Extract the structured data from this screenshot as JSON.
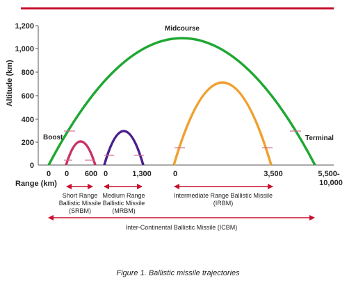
{
  "figure": {
    "caption": "Figure 1. Ballistic missile trajectories",
    "colors": {
      "top_rule": "#c8102e",
      "arrow": "#c8102e",
      "srbm": "#c8336a",
      "mrbm": "#4b1f8e",
      "irbm": "#f0a030",
      "icbm": "#1ea832",
      "marker": "#d07090",
      "axis": "#555555"
    },
    "phase_labels": {
      "boost": "Boost",
      "midcourse": "Midcourse",
      "terminal": "Terminal"
    },
    "y_axis": {
      "title": "Altitude (km)",
      "ticks": [
        "1,200",
        "1,000",
        "800",
        "600",
        "400",
        "200",
        "0"
      ]
    },
    "x_axis": {
      "title": "Range (km)",
      "groups": [
        {
          "name": "srbm",
          "ticks": [
            "0",
            "600"
          ]
        },
        {
          "name": "mrbm",
          "ticks": [
            "0",
            "1,300"
          ]
        },
        {
          "name": "irbm",
          "ticks": [
            "0",
            "3,500"
          ]
        },
        {
          "name": "icbm",
          "ticks": [
            "0",
            "5,500-",
            "10,000"
          ]
        }
      ]
    },
    "classes": {
      "srbm": {
        "line1": "Short Range",
        "line2": "Ballistic Missile",
        "line3": "(SRBM)"
      },
      "mrbm": {
        "line1": "Medium Range",
        "line2": "Ballistic Missile",
        "line3": "(MRBM)"
      },
      "irbm": {
        "line1": "Intermediate Range Ballistic Missile",
        "line2": "(IRBM)"
      },
      "icbm": {
        "label": "Inter-Continental Ballistic Missile (ICBM)"
      }
    }
  }
}
